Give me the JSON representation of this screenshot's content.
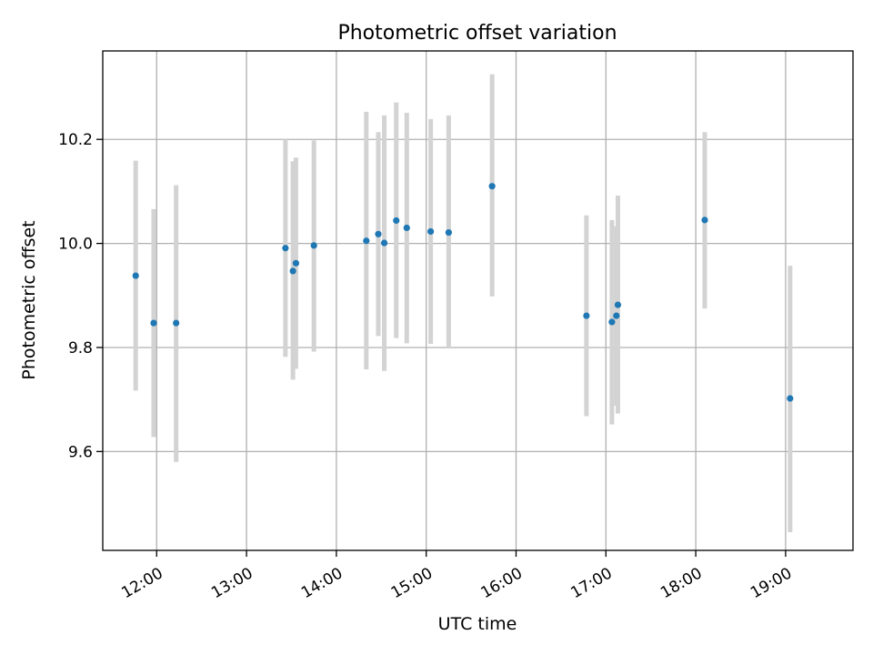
{
  "chart_data": {
    "type": "scatter",
    "title": "Photometric offset variation",
    "xlabel": "UTC time",
    "ylabel": "Photometric offset",
    "x_unit": "time",
    "xlim": [
      "11:24",
      "19:45"
    ],
    "ylim": [
      9.41,
      10.37
    ],
    "x_ticks": [
      "12:00",
      "13:00",
      "14:00",
      "15:00",
      "16:00",
      "17:00",
      "18:00",
      "19:00"
    ],
    "y_ticks": [
      9.6,
      9.8,
      10.0,
      10.2
    ],
    "y_tick_labels": [
      "9.6",
      "9.8",
      "10.0",
      "10.2"
    ],
    "grid": true,
    "legend": "none",
    "colors": {
      "points": "#1f77b4",
      "errorbars": "#d3d3d3",
      "grid": "#b0b0b0"
    },
    "points": [
      {
        "x": "11:46",
        "y": 9.938,
        "ylow": 9.717,
        "yhigh": 10.159
      },
      {
        "x": "11:58",
        "y": 9.847,
        "ylow": 9.628,
        "yhigh": 10.066
      },
      {
        "x": "12:13",
        "y": 9.847,
        "ylow": 9.58,
        "yhigh": 10.112
      },
      {
        "x": "13:26",
        "y": 9.991,
        "ylow": 9.782,
        "yhigh": 10.2
      },
      {
        "x": "13:31",
        "y": 9.947,
        "ylow": 9.738,
        "yhigh": 10.158
      },
      {
        "x": "13:33",
        "y": 9.962,
        "ylow": 9.759,
        "yhigh": 10.165
      },
      {
        "x": "13:45",
        "y": 9.996,
        "ylow": 9.792,
        "yhigh": 10.198
      },
      {
        "x": "14:20",
        "y": 10.005,
        "ylow": 9.758,
        "yhigh": 10.253
      },
      {
        "x": "14:28",
        "y": 10.018,
        "ylow": 9.822,
        "yhigh": 10.214
      },
      {
        "x": "14:32",
        "y": 10.001,
        "ylow": 9.755,
        "yhigh": 10.246
      },
      {
        "x": "14:40",
        "y": 10.044,
        "ylow": 9.818,
        "yhigh": 10.271
      },
      {
        "x": "14:47",
        "y": 10.03,
        "ylow": 9.808,
        "yhigh": 10.251
      },
      {
        "x": "15:03",
        "y": 10.023,
        "ylow": 9.807,
        "yhigh": 10.239
      },
      {
        "x": "15:15",
        "y": 10.021,
        "ylow": 9.8,
        "yhigh": 10.246
      },
      {
        "x": "15:44",
        "y": 10.11,
        "ylow": 9.898,
        "yhigh": 10.325
      },
      {
        "x": "16:47",
        "y": 9.861,
        "ylow": 9.668,
        "yhigh": 10.054
      },
      {
        "x": "17:04",
        "y": 9.849,
        "ylow": 9.652,
        "yhigh": 10.045
      },
      {
        "x": "17:07",
        "y": 9.861,
        "ylow": 9.688,
        "yhigh": 10.033
      },
      {
        "x": "17:08",
        "y": 9.882,
        "ylow": 9.673,
        "yhigh": 10.092
      },
      {
        "x": "18:06",
        "y": 10.045,
        "ylow": 9.875,
        "yhigh": 10.214
      },
      {
        "x": "19:03",
        "y": 9.702,
        "ylow": 9.445,
        "yhigh": 9.957
      }
    ]
  }
}
